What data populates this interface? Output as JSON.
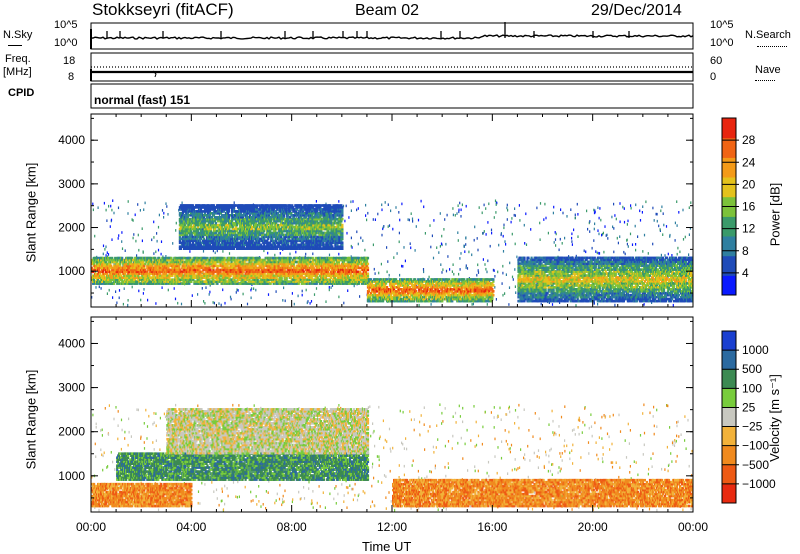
{
  "header": {
    "station": "Stokkseyri (fitACF)",
    "beam": "Beam 02",
    "date": "29/Dec/2014"
  },
  "noise_panel": {
    "left_label": "N.Sky",
    "right_label": "N.Search",
    "y_ticks": [
      "10^5",
      "10^0"
    ],
    "right_ticks": [
      "10^5",
      "10^0"
    ]
  },
  "freq_panel": {
    "label_line1": "Freq.",
    "label_line2": "[MHz]",
    "left_ticks": [
      "18",
      "8"
    ],
    "right_label": "Nave",
    "right_ticks": [
      "60",
      "0"
    ]
  },
  "cpid_panel": {
    "label": "CPID",
    "text": "normal (fast) 151"
  },
  "power_panel": {
    "ylabel": "Slant Range [km]",
    "colorbar_label": "Power [dB]"
  },
  "velocity_panel": {
    "ylabel": "Slant Range [km]",
    "colorbar_label": "Velocity [m s⁻¹]"
  },
  "xlabel": "Time UT",
  "chart_data": [
    {
      "type": "heatmap",
      "title": "",
      "xlabel": "",
      "ylabel": "Slant Range [km]",
      "x_ticks": [
        "00:00",
        "04:00",
        "08:00",
        "12:00",
        "16:00",
        "20:00",
        "00:00"
      ],
      "x_range_hours": [
        0,
        24
      ],
      "y_ticks": [
        1000,
        2000,
        3000,
        4000
      ],
      "ylim": [
        180,
        4600
      ],
      "colorbar": {
        "label": "Power [dB]",
        "ticks": [
          4,
          8,
          12,
          16,
          20,
          24,
          28
        ],
        "range": [
          0,
          32
        ],
        "colors": [
          "#0a1aff",
          "#1f4bb8",
          "#2f7fa0",
          "#3a9a6a",
          "#7cc23a",
          "#e4c21c",
          "#f39a18",
          "#f06414",
          "#e8250f"
        ]
      },
      "features": [
        {
          "range_km_start": 700,
          "range_km_end": 1300,
          "time_h_start": 0,
          "time_h_end": 11,
          "level_dB": 26
        },
        {
          "range_km_start": 300,
          "range_km_end": 800,
          "time_h_start": 11,
          "time_h_end": 16,
          "level_dB": 28
        },
        {
          "range_km_start": 1500,
          "range_km_end": 2500,
          "time_h_start": 3.5,
          "time_h_end": 10,
          "level_dB": 14
        },
        {
          "range_km_start": 300,
          "range_km_end": 1300,
          "time_h_start": 17,
          "time_h_end": 24,
          "level_dB": 20
        }
      ]
    },
    {
      "type": "heatmap",
      "title": "",
      "xlabel": "Time UT",
      "ylabel": "Slant Range [km]",
      "x_ticks": [
        "00:00",
        "04:00",
        "08:00",
        "12:00",
        "16:00",
        "20:00",
        "00:00"
      ],
      "x_range_hours": [
        0,
        24
      ],
      "y_ticks": [
        1000,
        2000,
        3000,
        4000
      ],
      "ylim": [
        180,
        4600
      ],
      "colorbar": {
        "label": "Velocity [m s⁻¹]",
        "ticks": [
          "1000",
          "500",
          "100",
          "25",
          "−25",
          "−100",
          "−500",
          "−1000"
        ],
        "colors": [
          "#1a3fd0",
          "#2b6aa0",
          "#3c8a52",
          "#78cc3c",
          "#c8c8c0",
          "#f2b23a",
          "#f08a1e",
          "#ee5a14",
          "#e82a10"
        ]
      },
      "features": [
        {
          "range_km_start": 900,
          "range_km_end": 1500,
          "time_h_start": 1,
          "time_h_end": 11,
          "velocity": 100
        },
        {
          "range_km_start": 300,
          "range_km_end": 800,
          "time_h_start": 0,
          "time_h_end": 4,
          "velocity": -100
        },
        {
          "range_km_start": 1500,
          "range_km_end": 2500,
          "time_h_start": 3,
          "time_h_end": 11,
          "velocity": 0
        },
        {
          "range_km_start": 300,
          "range_km_end": 900,
          "time_h_start": 12,
          "time_h_end": 24,
          "velocity": -100
        }
      ]
    }
  ]
}
